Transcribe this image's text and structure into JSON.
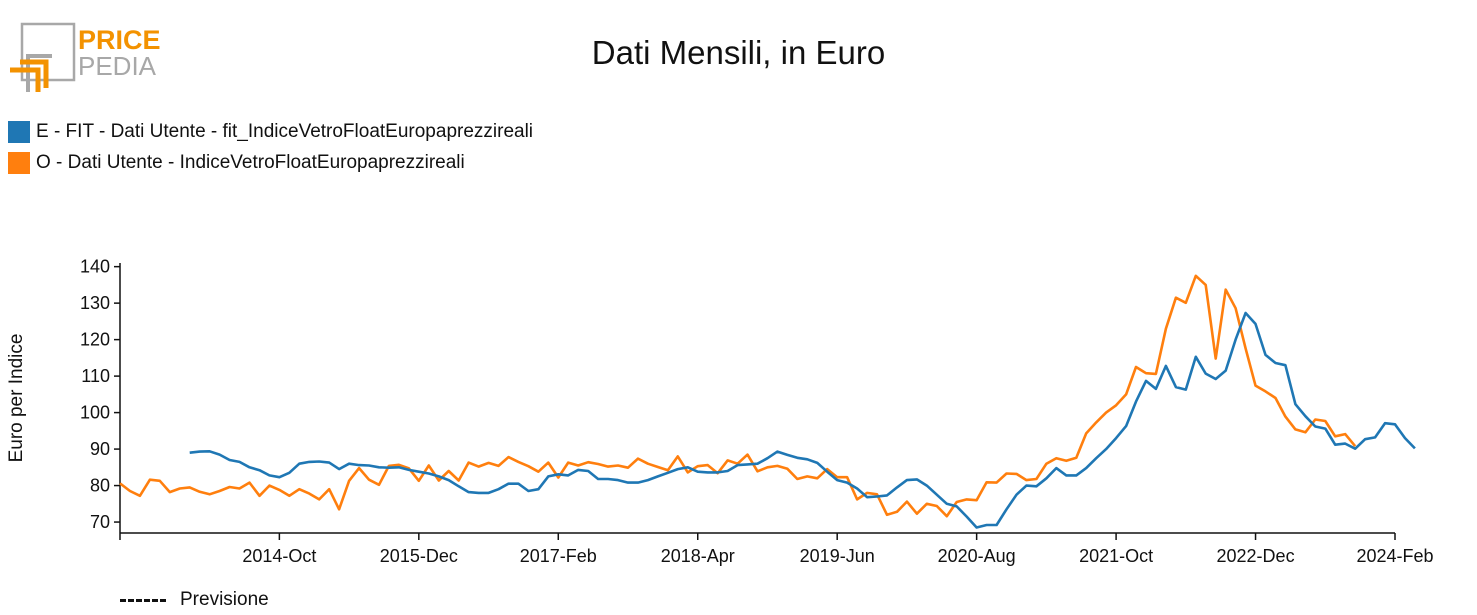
{
  "logo": {
    "text_top": "PRICE",
    "text_bottom": "PEDIA"
  },
  "chart_data": {
    "type": "line",
    "title": "Dati Mensili, in Euro",
    "ylabel": "Euro per Indice",
    "xlabel": "",
    "ylim": [
      67,
      141
    ],
    "yticks": [
      70,
      80,
      90,
      100,
      110,
      120,
      130,
      140
    ],
    "x_start": "2013-06",
    "x_end": "2024-02",
    "xtick_labels": [
      "2014-Oct",
      "2015-Dec",
      "2017-Feb",
      "2018-Apr",
      "2019-Jun",
      "2020-Aug",
      "2021-Oct",
      "2022-Dec",
      "2024-Feb"
    ],
    "colors": {
      "E": "#1f77b4",
      "O": "#ff7f0e"
    },
    "legend_position": "top-left",
    "grid": false,
    "series": [
      {
        "name": "E - FIT - Dati Utente - fit_IndiceVetroFloatEuropaprezzireali",
        "color": "#1f77b4",
        "start": "2014-01",
        "values": [
          89,
          89.3,
          89.4,
          88.5,
          87,
          86.5,
          85,
          84.2,
          82.8,
          82.3,
          83.5,
          86,
          86.5,
          86.6,
          86.3,
          84.5,
          86,
          85.6,
          85.5,
          85,
          84.9,
          85,
          84.3,
          83.8,
          83.3,
          82.5,
          81.5,
          79.8,
          78.2,
          78,
          78,
          79,
          80.5,
          80.5,
          78.5,
          79,
          82.5,
          83.1,
          82.8,
          84.3,
          84,
          81.8,
          81.8,
          81.5,
          80.8,
          80.8,
          81.5,
          82.5,
          83.5,
          84.5,
          85,
          83.8,
          83.6,
          83.6,
          84,
          85.6,
          85.8,
          86,
          87.5,
          89.3,
          88.4,
          87.6,
          87.2,
          86.2,
          83.8,
          81.5,
          80.8,
          79.2,
          76.8,
          77,
          77.3,
          79.5,
          81.5,
          81.7,
          80,
          77.5,
          75,
          74.3,
          71.5,
          68.5,
          69.2,
          69.2,
          73.5,
          77.5,
          80,
          79.8,
          82,
          84.8,
          82.8,
          82.8,
          84.8,
          87.5,
          90,
          93,
          96.3,
          103,
          108.7,
          106.5,
          112.8,
          107,
          106.3,
          115.3,
          110.7,
          109.2,
          111.5,
          120,
          127.3,
          124.3,
          115.8,
          113.6,
          113,
          102.3,
          99,
          96.2,
          95.6,
          91.2,
          91.5,
          90.1,
          92.7,
          93.2,
          97.1,
          96.8,
          93,
          90.2
        ]
      },
      {
        "name": "O - Dati Utente - IndiceVetroFloatEuropaprezzireali",
        "color": "#ff7f0e",
        "start": "2013-06",
        "values": [
          80.6,
          78.5,
          77.2,
          81.6,
          81.3,
          78.2,
          79.2,
          79.5,
          78.3,
          77.6,
          78.5,
          79.6,
          79.2,
          80.8,
          77.2,
          80,
          78.8,
          77.2,
          79,
          77.8,
          76.2,
          79,
          73.5,
          81.3,
          84.8,
          81.6,
          80.2,
          85.4,
          85.7,
          84.7,
          81.3,
          85.5,
          81.4,
          84,
          81.4,
          86.3,
          85.2,
          86.2,
          85.4,
          87.8,
          86.5,
          85.3,
          83.8,
          86.3,
          82.2,
          86.3,
          85.5,
          86.4,
          85.9,
          85.2,
          85.5,
          84.9,
          87.4,
          86,
          85.1,
          84.2,
          88,
          83.6,
          85.3,
          85.6,
          83.4,
          86.9,
          86,
          88.5,
          83.9,
          85,
          85.4,
          84.6,
          81.8,
          82.5,
          82,
          84.5,
          82.3,
          82.3,
          76.2,
          78,
          77.6,
          72,
          72.8,
          75.6,
          72.3,
          75,
          74.4,
          71.6,
          75.5,
          76.2,
          76,
          80.9,
          80.8,
          83.3,
          83.2,
          81.5,
          81.8,
          86,
          87.5,
          86.8,
          87.6,
          94.3,
          97.3,
          100,
          102,
          105,
          112.5,
          110.8,
          110.6,
          123,
          131.5,
          130.1,
          137.5,
          135,
          114.8,
          133.7,
          128.6,
          117.6,
          107.4,
          105.8,
          104,
          98.9,
          95.4,
          94.6,
          98.1,
          97.7,
          93.5,
          94.1,
          90.8
        ]
      }
    ]
  },
  "legend": [
    {
      "label": "E - FIT - Dati Utente - fit_IndiceVetroFloatEuropaprezzireali",
      "color": "#1f77b4"
    },
    {
      "label": "O - Dati Utente - IndiceVetroFloatEuropaprezzireali",
      "color": "#ff7f0e"
    }
  ],
  "forecast_note": "Previsione"
}
